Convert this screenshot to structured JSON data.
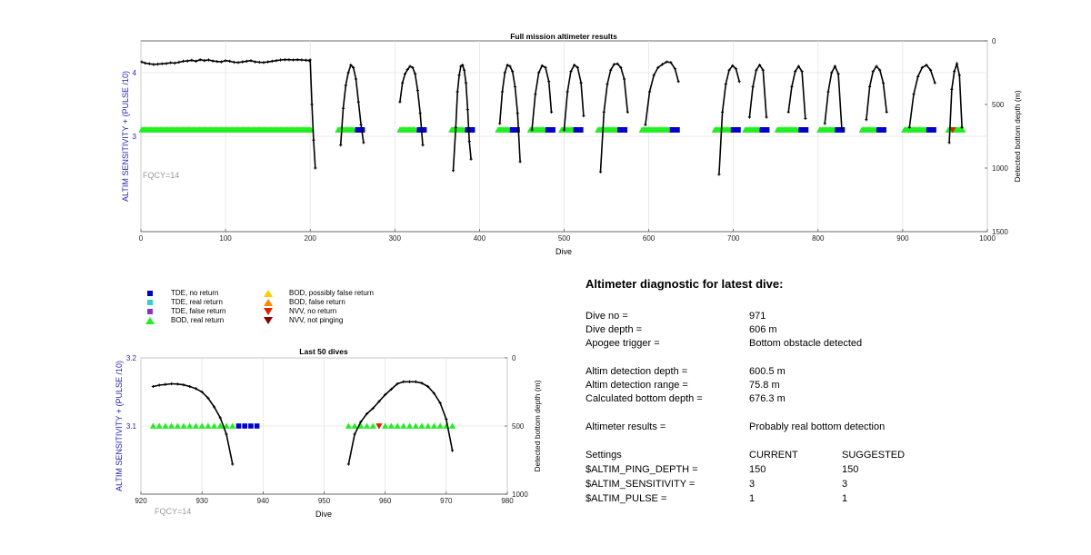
{
  "colors": {
    "tde_no_return": "#0000cc",
    "tde_real_return": "#33cccc",
    "tde_false_return": "#8833cc",
    "bod_real_return": "#22ee22",
    "bod_possibly_false": "#ffcc00",
    "bod_false_return": "#ff8800",
    "nvv_no_return": "#dd2200",
    "nvv_not_pinging": "#880000",
    "left_axis": "#1f1fb4",
    "fqcy_label": "#999999",
    "depth_line": "#000000"
  },
  "chart_data": [
    {
      "type": "scatter",
      "title": "Full mission altimeter results",
      "xlabel": "Dive",
      "ylabel_left": "ALTIM SENSITIVITY + (PULSE /10)",
      "ylabel_right": "Detected bottom depth (m)",
      "xlim": [
        0,
        1000
      ],
      "ylim_left": [
        1.5,
        4.5
      ],
      "ylim_right": [
        1500,
        0
      ],
      "x_ticks": [
        "0",
        "100",
        "200",
        "300",
        "400",
        "500",
        "600",
        "700",
        "800",
        "900",
        "1000"
      ],
      "y_left_ticks": [
        "3",
        "4"
      ],
      "y_right_ticks": [
        "0",
        "500",
        "1000",
        "1500"
      ],
      "annotation": "FQCY=14",
      "grid": true,
      "marker_level": 3.1,
      "segments": [
        {
          "x_start": 1,
          "x_end": 202,
          "ends": "none"
        },
        {
          "x_start": 233,
          "x_end": 262,
          "ends": "tde"
        },
        {
          "x_start": 306,
          "x_end": 335,
          "ends": "tde"
        },
        {
          "x_start": 367,
          "x_end": 392,
          "ends": "tde"
        },
        {
          "x_start": 422,
          "x_end": 445,
          "ends": "tde"
        },
        {
          "x_start": 460,
          "x_end": 487,
          "ends": "tde"
        },
        {
          "x_start": 497,
          "x_end": 520,
          "ends": "tde"
        },
        {
          "x_start": 540,
          "x_end": 572,
          "ends": "tde"
        },
        {
          "x_start": 592,
          "x_end": 634,
          "ends": "tde"
        },
        {
          "x_start": 678,
          "x_end": 706,
          "ends": "tde"
        },
        {
          "x_start": 714,
          "x_end": 740,
          "ends": "tde"
        },
        {
          "x_start": 752,
          "x_end": 786,
          "ends": "tde"
        },
        {
          "x_start": 802,
          "x_end": 829,
          "ends": "tde"
        },
        {
          "x_start": 852,
          "x_end": 878,
          "ends": "tde"
        },
        {
          "x_start": 902,
          "x_end": 937,
          "ends": "tde"
        },
        {
          "x_start": 954,
          "x_end": 971,
          "ends": "none"
        }
      ],
      "nvv_no_return_dives": [
        959
      ],
      "depth_profiles": [
        {
          "x": [
            1,
            5,
            10,
            15,
            20,
            25,
            30,
            35,
            40,
            45,
            50,
            55,
            60,
            65,
            70,
            75,
            80,
            85,
            90,
            95,
            100,
            105,
            110,
            115,
            120,
            125,
            130,
            135,
            140,
            145,
            150,
            155,
            160,
            165,
            170,
            175,
            180,
            185,
            190,
            195,
            199
          ],
          "y": [
            165,
            175,
            180,
            185,
            183,
            180,
            178,
            172,
            175,
            168,
            160,
            158,
            152,
            160,
            148,
            155,
            150,
            158,
            162,
            165,
            155,
            160,
            168,
            170,
            165,
            160,
            155,
            165,
            168,
            170,
            165,
            160,
            155,
            150,
            148,
            148,
            150,
            148,
            150,
            152,
            155
          ]
        },
        {
          "x": [
            200,
            202,
            204,
            206
          ],
          "y": [
            150,
            500,
            780,
            1000
          ]
        },
        {
          "x": [
            236,
            239,
            242,
            245,
            248,
            251,
            254,
            257,
            260,
            263
          ],
          "y": [
            820,
            530,
            350,
            250,
            190,
            210,
            300,
            480,
            660,
            800
          ]
        },
        {
          "x": [
            306,
            309,
            312,
            315,
            318,
            321,
            324,
            327,
            330,
            333
          ],
          "y": [
            480,
            330,
            260,
            225,
            200,
            210,
            260,
            390,
            570,
            820
          ]
        },
        {
          "x": [
            369,
            372,
            374,
            376,
            378,
            380,
            382,
            384,
            386,
            388,
            390
          ],
          "y": [
            1020,
            680,
            400,
            270,
            200,
            190,
            230,
            330,
            540,
            790,
            930
          ]
        },
        {
          "x": [
            424,
            427,
            430,
            433,
            436,
            439,
            442,
            445,
            448
          ],
          "y": [
            650,
            400,
            250,
            190,
            200,
            240,
            360,
            570,
            950
          ]
        },
        {
          "x": [
            462,
            466,
            470,
            474,
            478,
            482,
            485
          ],
          "y": [
            700,
            420,
            250,
            195,
            210,
            320,
            560
          ]
        },
        {
          "x": [
            500,
            504,
            508,
            512,
            516,
            520,
            523
          ],
          "y": [
            700,
            400,
            240,
            190,
            210,
            330,
            590
          ]
        },
        {
          "x": [
            543,
            547,
            551,
            555,
            559,
            563,
            567,
            571,
            575
          ],
          "y": [
            1030,
            560,
            340,
            230,
            185,
            180,
            210,
            300,
            560
          ]
        },
        {
          "x": [
            596,
            601,
            606,
            611,
            616,
            621,
            626,
            631,
            635
          ],
          "y": [
            660,
            400,
            270,
            210,
            185,
            165,
            170,
            220,
            320
          ]
        },
        {
          "x": [
            683,
            687,
            691,
            695,
            699,
            703,
            707
          ],
          "y": [
            1050,
            560,
            340,
            230,
            195,
            220,
            320
          ]
        },
        {
          "x": [
            719,
            723,
            727,
            731,
            735,
            739
          ],
          "y": [
            600,
            360,
            230,
            190,
            230,
            600
          ]
        },
        {
          "x": [
            765,
            769,
            773,
            777,
            781,
            785
          ],
          "y": [
            560,
            360,
            240,
            200,
            240,
            610
          ]
        },
        {
          "x": [
            808,
            812,
            816,
            820,
            824,
            828
          ],
          "y": [
            650,
            400,
            250,
            200,
            260,
            690
          ]
        },
        {
          "x": [
            857,
            861,
            865,
            869,
            873,
            877,
            881
          ],
          "y": [
            620,
            360,
            240,
            200,
            230,
            330,
            560
          ]
        },
        {
          "x": [
            908,
            913,
            918,
            923,
            928,
            933,
            938
          ],
          "y": [
            680,
            420,
            280,
            210,
            190,
            230,
            330
          ]
        },
        {
          "x": [
            955,
            958,
            961,
            964,
            967,
            970
          ],
          "y": [
            800,
            380,
            240,
            180,
            270,
            680
          ]
        }
      ]
    },
    {
      "type": "scatter",
      "title": "Last 50 dives",
      "xlabel": "Dive",
      "ylabel_left": "ALTIM SENSITIVITY + (PULSE /10)",
      "ylabel_right": "Detected bottom depth (m)",
      "xlim": [
        920,
        980
      ],
      "ylim_left": [
        3.0,
        3.2
      ],
      "ylim_right": [
        1000,
        0
      ],
      "x_ticks": [
        "920",
        "930",
        "940",
        "950",
        "960",
        "970",
        "980"
      ],
      "y_left_ticks": [
        "3.1",
        "3.2"
      ],
      "y_right_ticks": [
        "0",
        "500",
        "1000"
      ],
      "annotation": "FQCY=14",
      "grid": true,
      "marker_level": 3.1,
      "bod_real_return_dives": [
        922,
        923,
        924,
        925,
        926,
        927,
        928,
        929,
        930,
        931,
        932,
        933,
        934,
        935,
        954,
        955,
        956,
        957,
        958,
        960,
        961,
        962,
        963,
        964,
        965,
        966,
        967,
        968,
        969,
        970,
        971
      ],
      "nvv_no_return_dives": [
        959
      ],
      "tde_no_return_dives": [
        936,
        937,
        938,
        939
      ],
      "depth_profiles": [
        {
          "x": [
            922,
            923,
            924,
            925,
            926,
            927,
            928,
            929,
            930,
            931,
            932,
            933,
            934,
            935
          ],
          "y": [
            210,
            200,
            195,
            190,
            192,
            198,
            210,
            225,
            250,
            295,
            360,
            440,
            560,
            780
          ]
        },
        {
          "x": [
            954,
            955,
            956,
            957,
            958,
            959,
            960,
            961,
            962,
            963,
            964,
            965,
            966,
            967,
            968,
            969,
            970,
            971
          ],
          "y": [
            780,
            560,
            470,
            410,
            370,
            320,
            270,
            230,
            190,
            175,
            175,
            175,
            185,
            210,
            260,
            330,
            450,
            680
          ]
        }
      ]
    }
  ],
  "legend": [
    {
      "key": "tde_no_return",
      "label": "TDE, no return",
      "shape": "square"
    },
    {
      "key": "tde_real_return",
      "label": "TDE, real return",
      "shape": "square"
    },
    {
      "key": "tde_false_return",
      "label": "TDE, false return",
      "shape": "square"
    },
    {
      "key": "bod_real_return",
      "label": "BOD, real return",
      "shape": "triangle-up"
    },
    {
      "key": "bod_possibly_false",
      "label": "BOD, possibly false return",
      "shape": "triangle-up"
    },
    {
      "key": "bod_false_return",
      "label": "BOD, false return",
      "shape": "triangle-up"
    },
    {
      "key": "nvv_no_return",
      "label": "NVV, no return",
      "shape": "triangle-down"
    },
    {
      "key": "nvv_not_pinging",
      "label": "NVV, not pinging",
      "shape": "triangle-down"
    }
  ],
  "diagnostic": {
    "title": "Altimeter diagnostic for latest dive:",
    "dive_no_label": "Dive no =",
    "dive_no": "971",
    "dive_depth_label": "Dive depth =",
    "dive_depth": "606 m",
    "apogee_label": "Apogee trigger =",
    "apogee": "Bottom obstacle detected",
    "altim_detection_depth_label": "Altim detection depth =",
    "altim_detection_depth": "600.5 m",
    "altim_detection_range_label": "Altim detection range =",
    "altim_detection_range": "75.8 m",
    "calc_bottom_depth_label": "Calculated bottom depth =",
    "calc_bottom_depth": "676.3 m",
    "results_label": "Altimeter results =",
    "results": "Probably real bottom detection",
    "settings_label": "Settings",
    "current_label": "CURRENT",
    "suggested_label": "SUGGESTED",
    "ping_depth_label": "$ALTIM_PING_DEPTH =",
    "ping_depth_current": "150",
    "ping_depth_suggested": "150",
    "sensitivity_label": "$ALTIM_SENSITIVITY =",
    "sensitivity_current": "3",
    "sensitivity_suggested": "3",
    "pulse_label": "$ALTIM_PULSE =",
    "pulse_current": "1",
    "pulse_suggested": "1"
  }
}
